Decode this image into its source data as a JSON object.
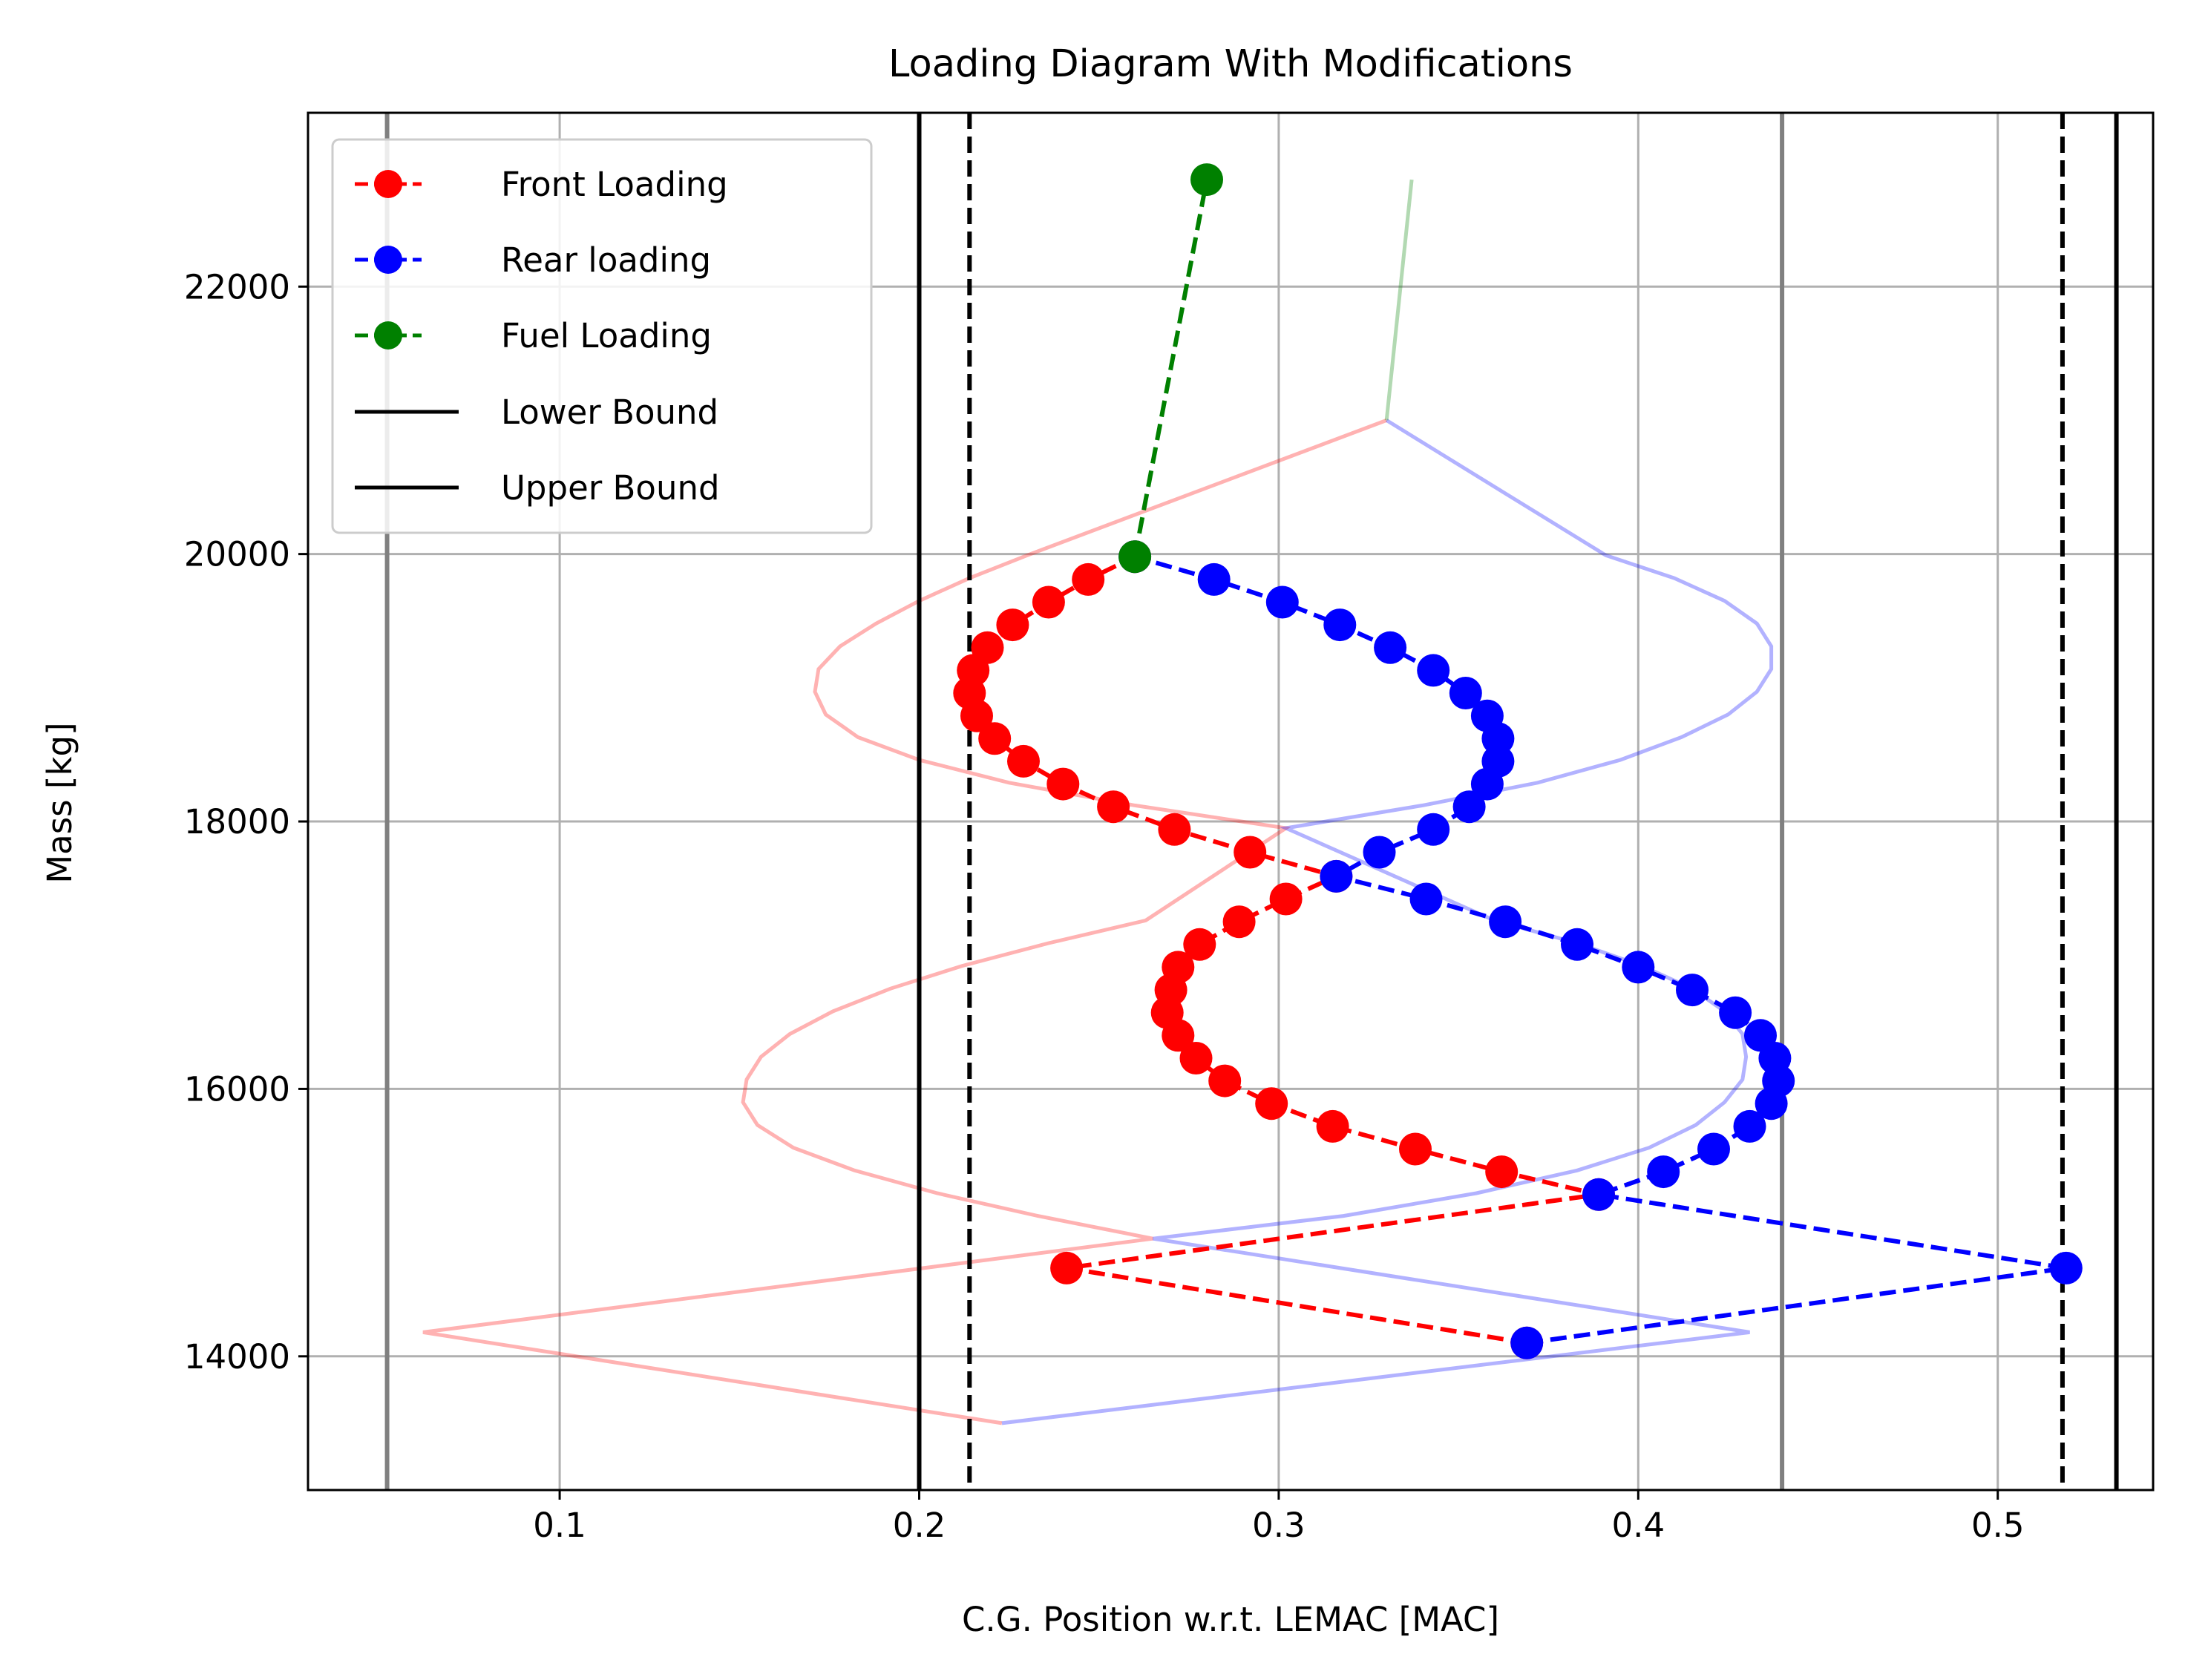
{
  "chart_data": {
    "type": "line",
    "title": "Loading Diagram With Modifications",
    "xlabel": "C.G. Position w.r.t. LEMAC [MAC]",
    "ylabel": "Mass [kg]",
    "xlim": [
      0.03,
      0.5432
    ],
    "ylim": [
      13000,
      23300
    ],
    "xticks": [
      0.1,
      0.2,
      0.3,
      0.4,
      0.5
    ],
    "xtick_labels": [
      "0.1",
      "0.2",
      "0.3",
      "0.4",
      "0.5"
    ],
    "yticks": [
      14000,
      16000,
      18000,
      20000,
      22000
    ],
    "ytick_labels": [
      "14000",
      "16000",
      "18000",
      "20000",
      "22000"
    ],
    "grid": true,
    "legend_position": "top-left",
    "legend": [
      {
        "label": "Front Loading",
        "color": "#ff0000",
        "style": "dashed-marker"
      },
      {
        "label": "Rear loading",
        "color": "#0000ff",
        "style": "dashed-marker"
      },
      {
        "label": "Fuel Loading",
        "color": "#008000",
        "style": "dashed-marker"
      },
      {
        "label": "Lower Bound",
        "color": "#000000",
        "style": "solid"
      },
      {
        "label": "Upper Bound",
        "color": "#000000",
        "style": "solid"
      }
    ],
    "series": [
      {
        "name": "Front Loading",
        "color": "#ff0000",
        "style": "dashed",
        "marker": true,
        "points": [
          [
            0.369,
            14100
          ],
          [
            0.241,
            14660
          ],
          [
            0.389,
            15210
          ],
          [
            0.362,
            15380
          ],
          [
            0.338,
            15550
          ],
          [
            0.315,
            15720
          ],
          [
            0.298,
            15890
          ],
          [
            0.285,
            16060
          ],
          [
            0.277,
            16230
          ],
          [
            0.272,
            16400
          ],
          [
            0.269,
            16570
          ],
          [
            0.27,
            16740
          ],
          [
            0.272,
            16910
          ],
          [
            0.278,
            17080
          ],
          [
            0.289,
            17250
          ],
          [
            0.302,
            17420
          ],
          [
            0.316,
            17590
          ],
          [
            0.292,
            17770
          ],
          [
            0.271,
            17940
          ],
          [
            0.254,
            18110
          ],
          [
            0.24,
            18280
          ],
          [
            0.229,
            18450
          ],
          [
            0.221,
            18620
          ],
          [
            0.216,
            18790
          ],
          [
            0.214,
            18960
          ],
          [
            0.215,
            19130
          ],
          [
            0.219,
            19300
          ],
          [
            0.226,
            19470
          ],
          [
            0.236,
            19640
          ],
          [
            0.247,
            19810
          ],
          [
            0.26,
            19980
          ]
        ]
      },
      {
        "name": "Rear loading",
        "color": "#0000ff",
        "style": "dashed",
        "marker": true,
        "points": [
          [
            0.369,
            14100
          ],
          [
            0.519,
            14660
          ],
          [
            0.389,
            15210
          ],
          [
            0.407,
            15380
          ],
          [
            0.421,
            15550
          ],
          [
            0.431,
            15720
          ],
          [
            0.437,
            15890
          ],
          [
            0.439,
            16060
          ],
          [
            0.438,
            16230
          ],
          [
            0.434,
            16400
          ],
          [
            0.427,
            16570
          ],
          [
            0.415,
            16740
          ],
          [
            0.4,
            16910
          ],
          [
            0.383,
            17080
          ],
          [
            0.363,
            17250
          ],
          [
            0.341,
            17420
          ],
          [
            0.316,
            17590
          ],
          [
            0.328,
            17770
          ],
          [
            0.343,
            17940
          ],
          [
            0.353,
            18110
          ],
          [
            0.358,
            18280
          ],
          [
            0.361,
            18450
          ],
          [
            0.361,
            18620
          ],
          [
            0.358,
            18790
          ],
          [
            0.352,
            18960
          ],
          [
            0.343,
            19130
          ],
          [
            0.331,
            19300
          ],
          [
            0.317,
            19470
          ],
          [
            0.301,
            19640
          ],
          [
            0.282,
            19810
          ],
          [
            0.26,
            19980
          ]
        ]
      },
      {
        "name": "Fuel Loading",
        "color": "#008000",
        "style": "dashed",
        "marker": true,
        "points": [
          [
            0.26,
            19980
          ],
          [
            0.28,
            22800
          ]
        ]
      }
    ],
    "faint_series": [
      {
        "color": "#ff0000",
        "opacity": 0.3,
        "points": [
          [
            0.223,
            13500
          ],
          [
            0.062,
            14180
          ],
          [
            0.265,
            14880
          ],
          [
            0.233,
            15050
          ],
          [
            0.205,
            15220
          ],
          [
            0.182,
            15390
          ],
          [
            0.165,
            15560
          ],
          [
            0.155,
            15730
          ],
          [
            0.151,
            15900
          ],
          [
            0.152,
            16070
          ],
          [
            0.156,
            16240
          ],
          [
            0.164,
            16410
          ],
          [
            0.176,
            16580
          ],
          [
            0.192,
            16750
          ],
          [
            0.212,
            16920
          ],
          [
            0.236,
            17090
          ],
          [
            0.263,
            17260
          ],
          [
            0.302,
            17950
          ],
          [
            0.26,
            18120
          ],
          [
            0.225,
            18290
          ],
          [
            0.2,
            18460
          ],
          [
            0.183,
            18630
          ],
          [
            0.174,
            18800
          ],
          [
            0.171,
            18970
          ],
          [
            0.172,
            19140
          ],
          [
            0.178,
            19310
          ],
          [
            0.188,
            19480
          ],
          [
            0.2,
            19650
          ],
          [
            0.214,
            19820
          ],
          [
            0.23,
            19990
          ],
          [
            0.33,
            21000
          ]
        ]
      },
      {
        "color": "#0000ff",
        "opacity": 0.3,
        "points": [
          [
            0.223,
            13500
          ],
          [
            0.431,
            14180
          ],
          [
            0.265,
            14880
          ],
          [
            0.318,
            15050
          ],
          [
            0.355,
            15220
          ],
          [
            0.383,
            15390
          ],
          [
            0.403,
            15560
          ],
          [
            0.416,
            15730
          ],
          [
            0.424,
            15900
          ],
          [
            0.429,
            16070
          ],
          [
            0.43,
            16240
          ],
          [
            0.429,
            16410
          ],
          [
            0.424,
            16580
          ],
          [
            0.415,
            16750
          ],
          [
            0.401,
            16920
          ],
          [
            0.383,
            17090
          ],
          [
            0.36,
            17260
          ],
          [
            0.302,
            17950
          ],
          [
            0.34,
            18120
          ],
          [
            0.372,
            18290
          ],
          [
            0.395,
            18460
          ],
          [
            0.412,
            18630
          ],
          [
            0.425,
            18800
          ],
          [
            0.433,
            18970
          ],
          [
            0.437,
            19140
          ],
          [
            0.437,
            19310
          ],
          [
            0.433,
            19480
          ],
          [
            0.424,
            19650
          ],
          [
            0.41,
            19820
          ],
          [
            0.391,
            19990
          ],
          [
            0.33,
            21000
          ]
        ]
      },
      {
        "color": "#008000",
        "opacity": 0.3,
        "points": [
          [
            0.33,
            21000
          ],
          [
            0.337,
            22800
          ]
        ]
      }
    ],
    "vertical_lines": [
      {
        "x": 0.052,
        "color": "#808080",
        "style": "solid"
      },
      {
        "x": 0.44,
        "color": "#808080",
        "style": "solid"
      },
      {
        "x": 0.2,
        "color": "#000000",
        "style": "solid"
      },
      {
        "x": 0.533,
        "color": "#000000",
        "style": "solid"
      },
      {
        "x": 0.214,
        "color": "#000000",
        "style": "dashed"
      },
      {
        "x": 0.518,
        "color": "#000000",
        "style": "dashed"
      }
    ]
  }
}
